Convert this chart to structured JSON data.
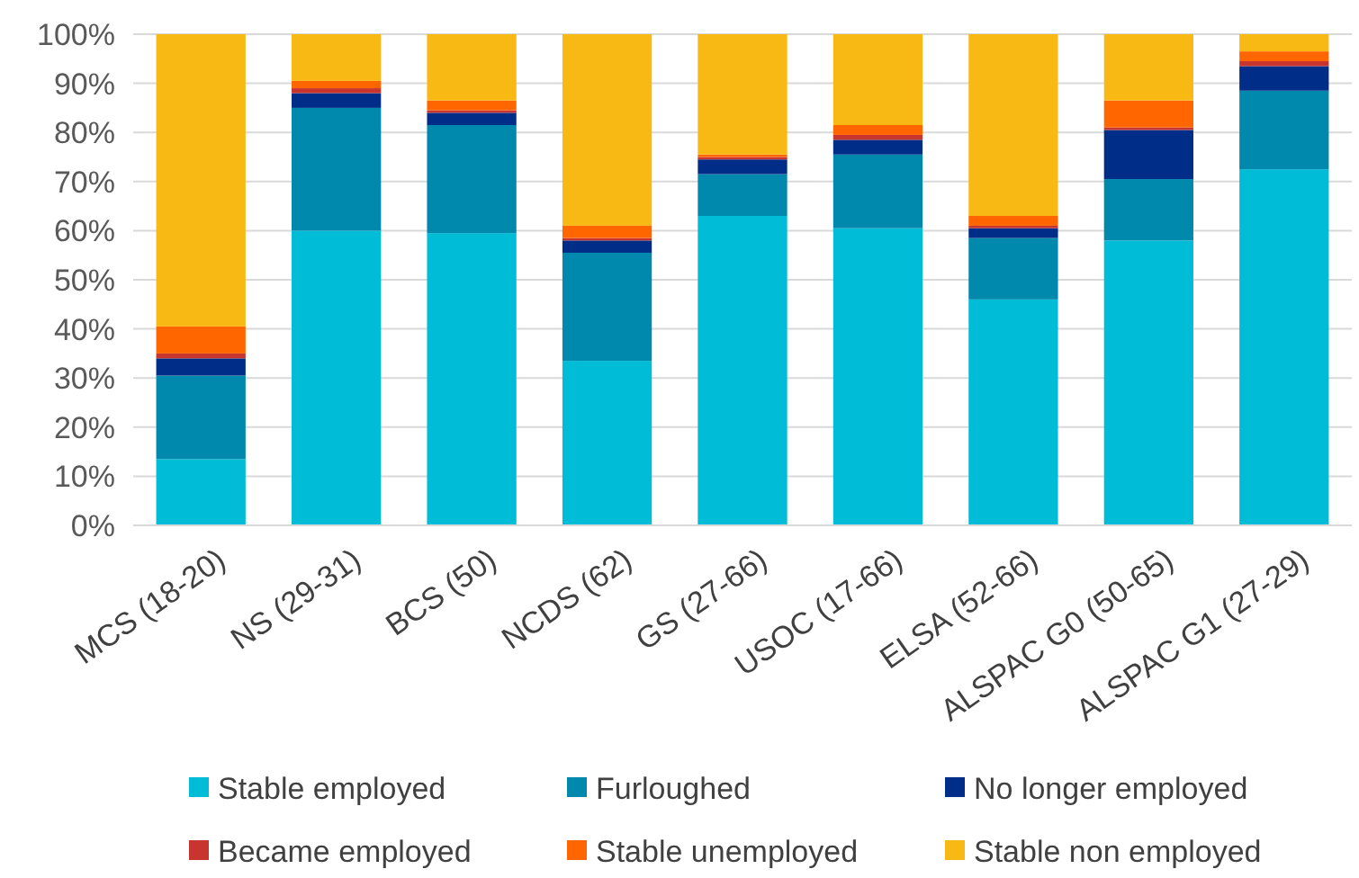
{
  "chart_data": {
    "type": "bar",
    "stacked": true,
    "categories": [
      "MCS (18-20)",
      "NS (29-31)",
      "BCS (50)",
      "NCDS (62)",
      "GS (27-66)",
      "USOC (17-66)",
      "ELSA (52-66)",
      "ALSPAC G0 (50-65)",
      "ALSPAC G1 (27-29)"
    ],
    "series": [
      {
        "name": "Stable employed",
        "color": "#00bcd6",
        "values": [
          13.5,
          60,
          59.5,
          33.5,
          63,
          60.5,
          46,
          58,
          72.5
        ]
      },
      {
        "name": "Furloughed",
        "color": "#0088ad",
        "values": [
          17,
          25,
          22,
          22,
          8.5,
          15,
          12.5,
          12.5,
          16
        ]
      },
      {
        "name": "No longer employed",
        "color": "#002d87",
        "values": [
          3.5,
          3,
          2.5,
          2.5,
          3,
          3,
          2,
          10,
          5
        ]
      },
      {
        "name": "Became employed",
        "color": "#c8342e",
        "values": [
          1,
          1,
          0.5,
          0.5,
          0.5,
          1,
          0.5,
          0.5,
          1
        ]
      },
      {
        "name": "Stable unemployed",
        "color": "#ff6600",
        "values": [
          5.5,
          1.5,
          2,
          2.5,
          0.5,
          2,
          2,
          5.5,
          2
        ]
      },
      {
        "name": "Stable non employed",
        "color": "#f9b914",
        "values": [
          59.5,
          9.5,
          13.5,
          39,
          24.5,
          18.5,
          37,
          13.5,
          3.5
        ]
      }
    ],
    "ylim": [
      0,
      100
    ],
    "yticks": [
      {
        "value": 0,
        "label": "0%"
      },
      {
        "value": 10,
        "label": "10%"
      },
      {
        "value": 20,
        "label": "20%"
      },
      {
        "value": 30,
        "label": "30%"
      },
      {
        "value": 40,
        "label": "40%"
      },
      {
        "value": 50,
        "label": "50%"
      },
      {
        "value": 60,
        "label": "60%"
      },
      {
        "value": 70,
        "label": "70%"
      },
      {
        "value": 80,
        "label": "80%"
      },
      {
        "value": 90,
        "label": "90%"
      },
      {
        "value": 100,
        "label": "100%"
      }
    ],
    "grid": "y",
    "legend": "bottom"
  }
}
